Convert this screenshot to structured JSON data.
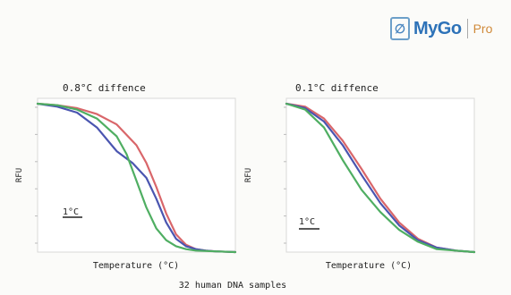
{
  "logo": {
    "name": "MyGo",
    "sub": "Pro"
  },
  "caption": "32 human DNA samples",
  "chart_data": [
    {
      "type": "line",
      "title": "0.8°C diffence",
      "xlabel": "Temperature (°C)",
      "ylabel": "RFU",
      "scale_label": "1°C",
      "xlim": [
        0,
        100
      ],
      "ylim": [
        0,
        100
      ],
      "grid": false,
      "series": [
        {
          "color": "#d9666a",
          "x": [
            0,
            10,
            20,
            30,
            40,
            50,
            55,
            60,
            65,
            70,
            75,
            80,
            85,
            90,
            100
          ],
          "y": [
            100,
            99,
            97,
            93,
            86,
            72,
            60,
            44,
            26,
            12,
            5,
            2,
            1,
            0.5,
            0
          ]
        },
        {
          "color": "#4a55b0",
          "x": [
            0,
            10,
            20,
            30,
            40,
            48,
            55,
            60,
            65,
            70,
            75,
            80,
            85,
            90,
            100
          ],
          "y": [
            100,
            98,
            94,
            84,
            68,
            60,
            50,
            36,
            20,
            9,
            4,
            2,
            1,
            0.5,
            0
          ]
        },
        {
          "color": "#4fae62",
          "x": [
            0,
            10,
            20,
            30,
            40,
            45,
            50,
            55,
            60,
            65,
            70,
            75,
            80,
            90,
            100
          ],
          "y": [
            100,
            99,
            96,
            90,
            78,
            66,
            48,
            30,
            16,
            8,
            4,
            2,
            1,
            0.5,
            0
          ]
        }
      ]
    },
    {
      "type": "line",
      "title": "0.1°C diffence",
      "xlabel": "Temperature (°C)",
      "ylabel": "RFU",
      "scale_label": "1°C",
      "xlim": [
        0,
        100
      ],
      "ylim": [
        0,
        100
      ],
      "grid": false,
      "series": [
        {
          "color": "#d9666a",
          "x": [
            0,
            10,
            20,
            30,
            40,
            50,
            60,
            70,
            80,
            90,
            100
          ],
          "y": [
            100,
            98,
            90,
            75,
            56,
            36,
            20,
            9,
            3,
            1,
            0
          ]
        },
        {
          "color": "#4a55b0",
          "x": [
            0,
            10,
            20,
            30,
            40,
            50,
            60,
            70,
            80,
            90,
            100
          ],
          "y": [
            100,
            97,
            88,
            72,
            52,
            33,
            18,
            8,
            3,
            1,
            0
          ]
        },
        {
          "color": "#4fae62",
          "x": [
            0,
            10,
            20,
            30,
            40,
            50,
            60,
            70,
            80,
            90,
            100
          ],
          "y": [
            100,
            96,
            84,
            62,
            42,
            27,
            15,
            7,
            2,
            1,
            0
          ]
        }
      ]
    }
  ]
}
